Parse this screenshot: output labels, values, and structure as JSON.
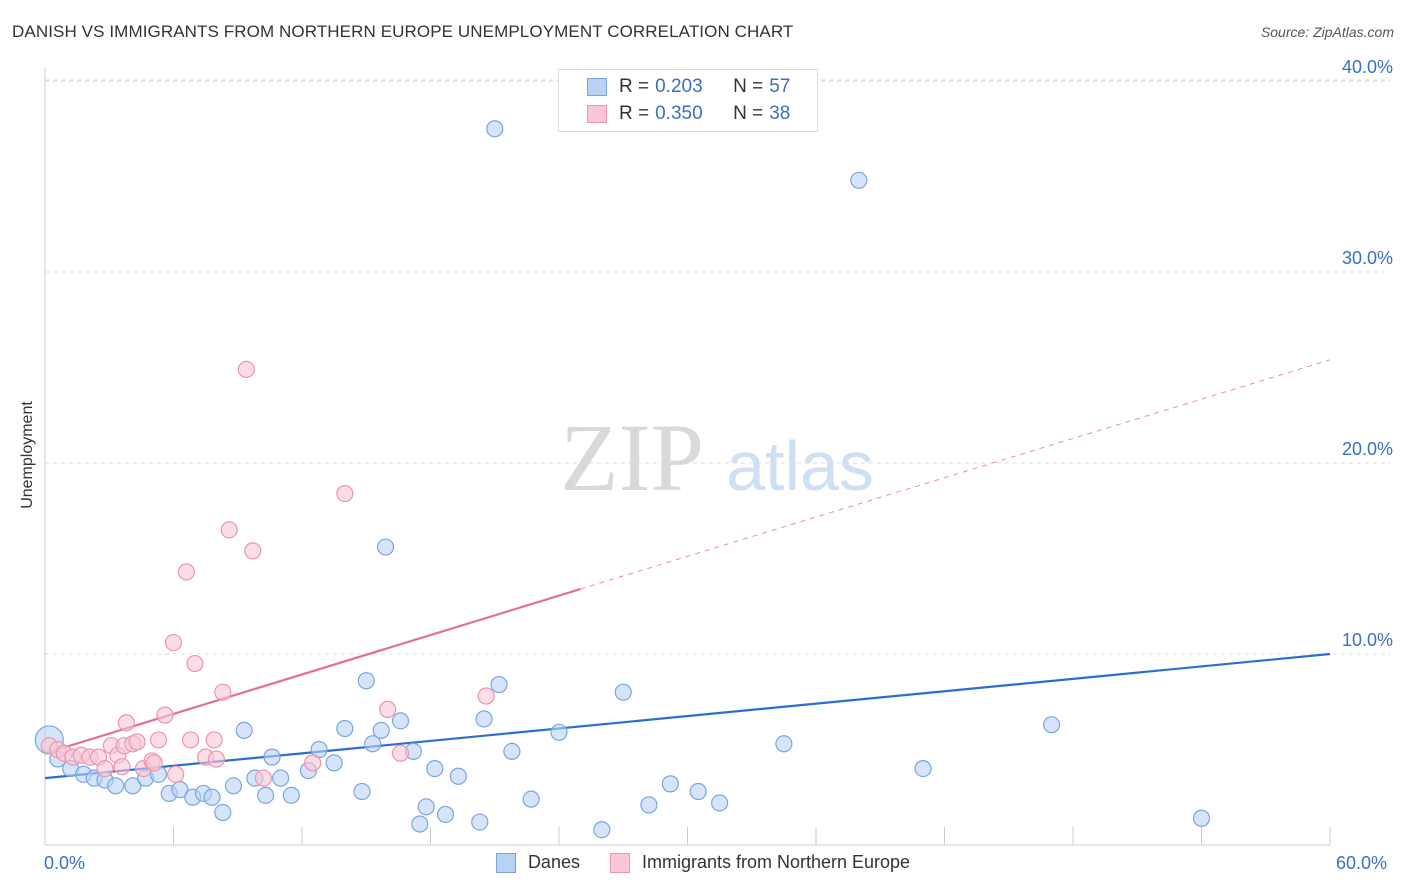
{
  "title": "DANISH VS IMMIGRANTS FROM NORTHERN EUROPE UNEMPLOYMENT CORRELATION CHART",
  "source": "Source: ZipAtlas.com",
  "watermark": {
    "zip": "ZIP",
    "atlas": "atlas"
  },
  "legend": {
    "danes": {
      "r_label": "R =",
      "r_value": "0.203",
      "n_label": "N =",
      "n_value": "57"
    },
    "immigrants": {
      "r_label": "R =",
      "r_value": "0.350",
      "n_label": "N =",
      "n_value": "38"
    }
  },
  "x_min_label": "0.0%",
  "x_max_label": "60.0%",
  "colors": {
    "danes_fill": "#b9d2f3",
    "danes_stroke": "#7aa6e0",
    "danes_line": "#2a6fce",
    "imm_fill": "#f9c7d5",
    "imm_stroke": "#ee94b0",
    "imm_line": "#e3708f",
    "grid": "#dddddd",
    "tick_text": "#3a6fc4"
  },
  "chart_data": {
    "type": "scatter",
    "title": "DANISH VS IMMIGRANTS FROM NORTHERN EUROPE UNEMPLOYMENT CORRELATION CHART",
    "xlabel": "",
    "ylabel": "Unemployment",
    "xlim": [
      0,
      60
    ],
    "ylim": [
      0,
      42
    ],
    "y_ticks": [
      10,
      20,
      30,
      40
    ],
    "y_tick_labels": [
      "10.0%",
      "20.0%",
      "30.0%",
      "40.0%"
    ],
    "x_ticks": [
      0,
      6,
      12,
      18,
      24,
      30,
      36,
      42,
      48,
      54,
      60
    ],
    "series": [
      {
        "name": "Danes",
        "r": 0.203,
        "n": 57,
        "trend": {
          "x": [
            0,
            60
          ],
          "y": [
            3.5,
            10.0
          ],
          "dashed_extension": null
        },
        "points": [
          [
            0.2,
            5.5
          ],
          [
            0.6,
            4.5
          ],
          [
            1.2,
            4.0
          ],
          [
            1.8,
            3.7
          ],
          [
            2.3,
            3.5
          ],
          [
            2.8,
            3.4
          ],
          [
            3.3,
            3.1
          ],
          [
            4.1,
            3.1
          ],
          [
            4.7,
            3.5
          ],
          [
            5.3,
            3.7
          ],
          [
            5.8,
            2.7
          ],
          [
            6.3,
            2.9
          ],
          [
            6.9,
            2.5
          ],
          [
            7.4,
            2.7
          ],
          [
            7.8,
            2.5
          ],
          [
            8.3,
            1.7
          ],
          [
            8.8,
            3.1
          ],
          [
            9.3,
            6.0
          ],
          [
            9.8,
            3.5
          ],
          [
            10.3,
            2.6
          ],
          [
            10.6,
            4.6
          ],
          [
            11.0,
            3.5
          ],
          [
            11.5,
            2.6
          ],
          [
            12.3,
            3.9
          ],
          [
            12.8,
            5.0
          ],
          [
            13.5,
            4.3
          ],
          [
            14.0,
            6.1
          ],
          [
            14.8,
            2.8
          ],
          [
            15.0,
            8.6
          ],
          [
            15.3,
            5.3
          ],
          [
            15.7,
            6.0
          ],
          [
            15.9,
            15.6
          ],
          [
            16.6,
            6.5
          ],
          [
            17.2,
            4.9
          ],
          [
            17.5,
            1.1
          ],
          [
            17.8,
            2.0
          ],
          [
            18.2,
            4.0
          ],
          [
            18.7,
            1.6
          ],
          [
            19.3,
            3.6
          ],
          [
            20.3,
            1.2
          ],
          [
            20.5,
            6.6
          ],
          [
            21.0,
            37.5
          ],
          [
            21.2,
            8.4
          ],
          [
            21.8,
            4.9
          ],
          [
            22.7,
            2.4
          ],
          [
            24.0,
            5.9
          ],
          [
            26.0,
            0.8
          ],
          [
            27.0,
            8.0
          ],
          [
            28.2,
            2.1
          ],
          [
            29.2,
            3.2
          ],
          [
            30.5,
            2.8
          ],
          [
            31.5,
            2.2
          ],
          [
            34.5,
            5.3
          ],
          [
            38.0,
            34.8
          ],
          [
            41.0,
            4.0
          ],
          [
            47.0,
            6.3
          ],
          [
            54.0,
            1.4
          ]
        ]
      },
      {
        "name": "Immigrants from Northern Europe",
        "r": 0.35,
        "n": 38,
        "trend": {
          "x": [
            0,
            25
          ],
          "y": [
            4.8,
            13.4
          ],
          "dashed_extension": {
            "x": [
              25,
              60
            ],
            "y": [
              13.4,
              25.4
            ]
          }
        },
        "points": [
          [
            0.2,
            5.2
          ],
          [
            0.6,
            5.0
          ],
          [
            0.9,
            4.8
          ],
          [
            1.3,
            4.6
          ],
          [
            1.7,
            4.7
          ],
          [
            2.1,
            4.6
          ],
          [
            2.5,
            4.6
          ],
          [
            2.8,
            4.0
          ],
          [
            3.1,
            5.2
          ],
          [
            3.4,
            4.7
          ],
          [
            3.7,
            5.2
          ],
          [
            3.8,
            6.4
          ],
          [
            4.1,
            5.3
          ],
          [
            4.3,
            5.4
          ],
          [
            4.6,
            4.0
          ],
          [
            5.0,
            4.4
          ],
          [
            5.1,
            4.3
          ],
          [
            5.6,
            6.8
          ],
          [
            6.1,
            3.7
          ],
          [
            6.6,
            14.3
          ],
          [
            6.8,
            5.5
          ],
          [
            6.0,
            10.6
          ],
          [
            7.0,
            9.5
          ],
          [
            7.5,
            4.6
          ],
          [
            7.9,
            5.5
          ],
          [
            8.0,
            4.5
          ],
          [
            8.3,
            8.0
          ],
          [
            8.6,
            16.5
          ],
          [
            9.4,
            24.9
          ],
          [
            9.7,
            15.4
          ],
          [
            10.2,
            3.5
          ],
          [
            12.5,
            4.3
          ],
          [
            14.0,
            18.4
          ],
          [
            16.0,
            7.1
          ],
          [
            16.6,
            4.8
          ],
          [
            20.6,
            7.8
          ],
          [
            3.6,
            4.1
          ],
          [
            5.3,
            5.5
          ]
        ]
      }
    ]
  },
  "bottom_legend": [
    "Danes",
    "Immigrants from Northern Europe"
  ]
}
